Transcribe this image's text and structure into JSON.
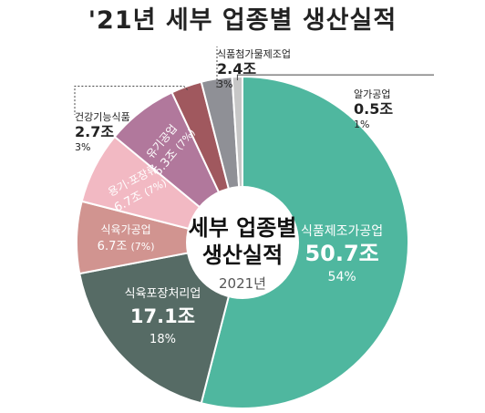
{
  "title": "'21년 세부 업종별 생산실적",
  "center": {
    "line1": "세부 업종별",
    "line2": "생산실적",
    "year": "2021년"
  },
  "chart_data": {
    "type": "pie",
    "variant": "donut",
    "title": "'21년 세부 업종별 생산실적",
    "slices": [
      {
        "label": "식품제조가공업",
        "amount": "50.7조",
        "pct": "54%",
        "value": 54,
        "color": "#4FB79F"
      },
      {
        "label": "식육포장처리업",
        "amount": "17.1조",
        "pct": "18%",
        "value": 18,
        "color": "#566B65"
      },
      {
        "label": "식육가공업",
        "amount": "6.7조",
        "pct": "(7%)",
        "value": 7,
        "color": "#D19490"
      },
      {
        "label": "용기·포장류",
        "amount": "6.7조",
        "pct": "(7%)",
        "value": 7,
        "color": "#F2B9C3"
      },
      {
        "label": "유기공업",
        "amount": "6.3조",
        "pct": "(7%)",
        "value": 7,
        "color": "#B1789C"
      },
      {
        "label": "건강기능식품",
        "amount": "2.7조",
        "pct": "3%",
        "value": 3,
        "color": "#A0585E"
      },
      {
        "label": "식품첨가물제조업",
        "amount": "2.4조",
        "pct": "3%",
        "value": 3,
        "color": "#8F9096"
      },
      {
        "label": "알가공업",
        "amount": "0.5조",
        "pct": "1%",
        "value": 1,
        "color": "#C7C7C7"
      }
    ]
  }
}
